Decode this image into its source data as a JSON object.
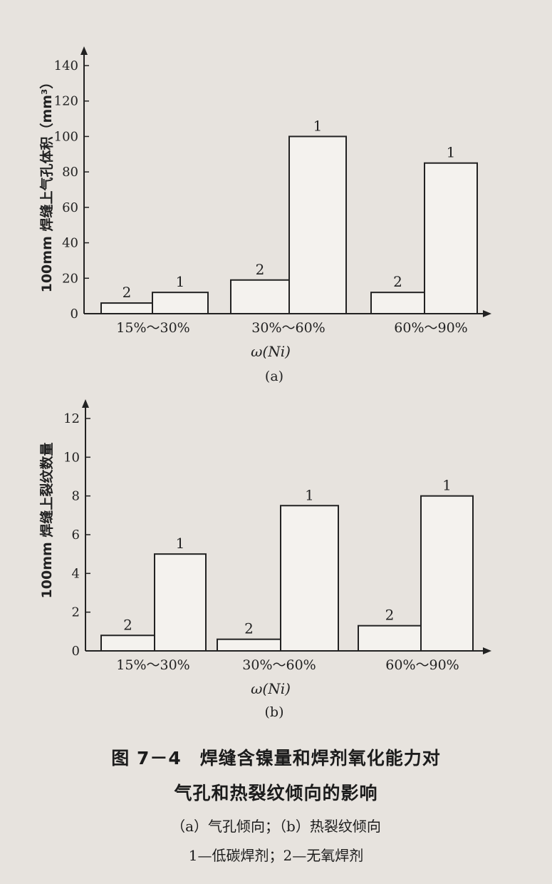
{
  "figure": {
    "title": "图 7－4　焊缝含镍量和焊剂氧化能力对",
    "title_line2": "气孔和热裂纹倾向的影响",
    "subcaption": "（a）气孔倾向；（b）热裂纹倾向",
    "legend_text": "1—低碳焊剂；2—无氧焊剂"
  },
  "chart_data": [
    {
      "type": "bar",
      "panel_label": "(a)",
      "xlabel": "ω(Ni)",
      "ylabel": "100mm 焊缝上气孔体积（mm³）",
      "categories": [
        "15%～30%",
        "30%～60%",
        "60%～90%"
      ],
      "ylim": [
        0,
        140
      ],
      "yticks": [
        0,
        20,
        40,
        60,
        80,
        100,
        120,
        140
      ],
      "grid": false,
      "series": [
        {
          "name": "2",
          "values": [
            6,
            19,
            12
          ]
        },
        {
          "name": "1",
          "values": [
            12,
            100,
            85
          ]
        }
      ]
    },
    {
      "type": "bar",
      "panel_label": "(b)",
      "xlabel": "ω(Ni)",
      "ylabel": "100mm 焊缝上裂纹数量",
      "categories": [
        "15%～30%",
        "30%～60%",
        "60%～90%"
      ],
      "ylim": [
        0,
        12
      ],
      "yticks": [
        0,
        2,
        4,
        6,
        8,
        10,
        12
      ],
      "grid": false,
      "series": [
        {
          "name": "2",
          "values": [
            0.8,
            0.6,
            1.3
          ]
        },
        {
          "name": "1",
          "values": [
            5,
            7.5,
            8
          ]
        }
      ]
    }
  ]
}
